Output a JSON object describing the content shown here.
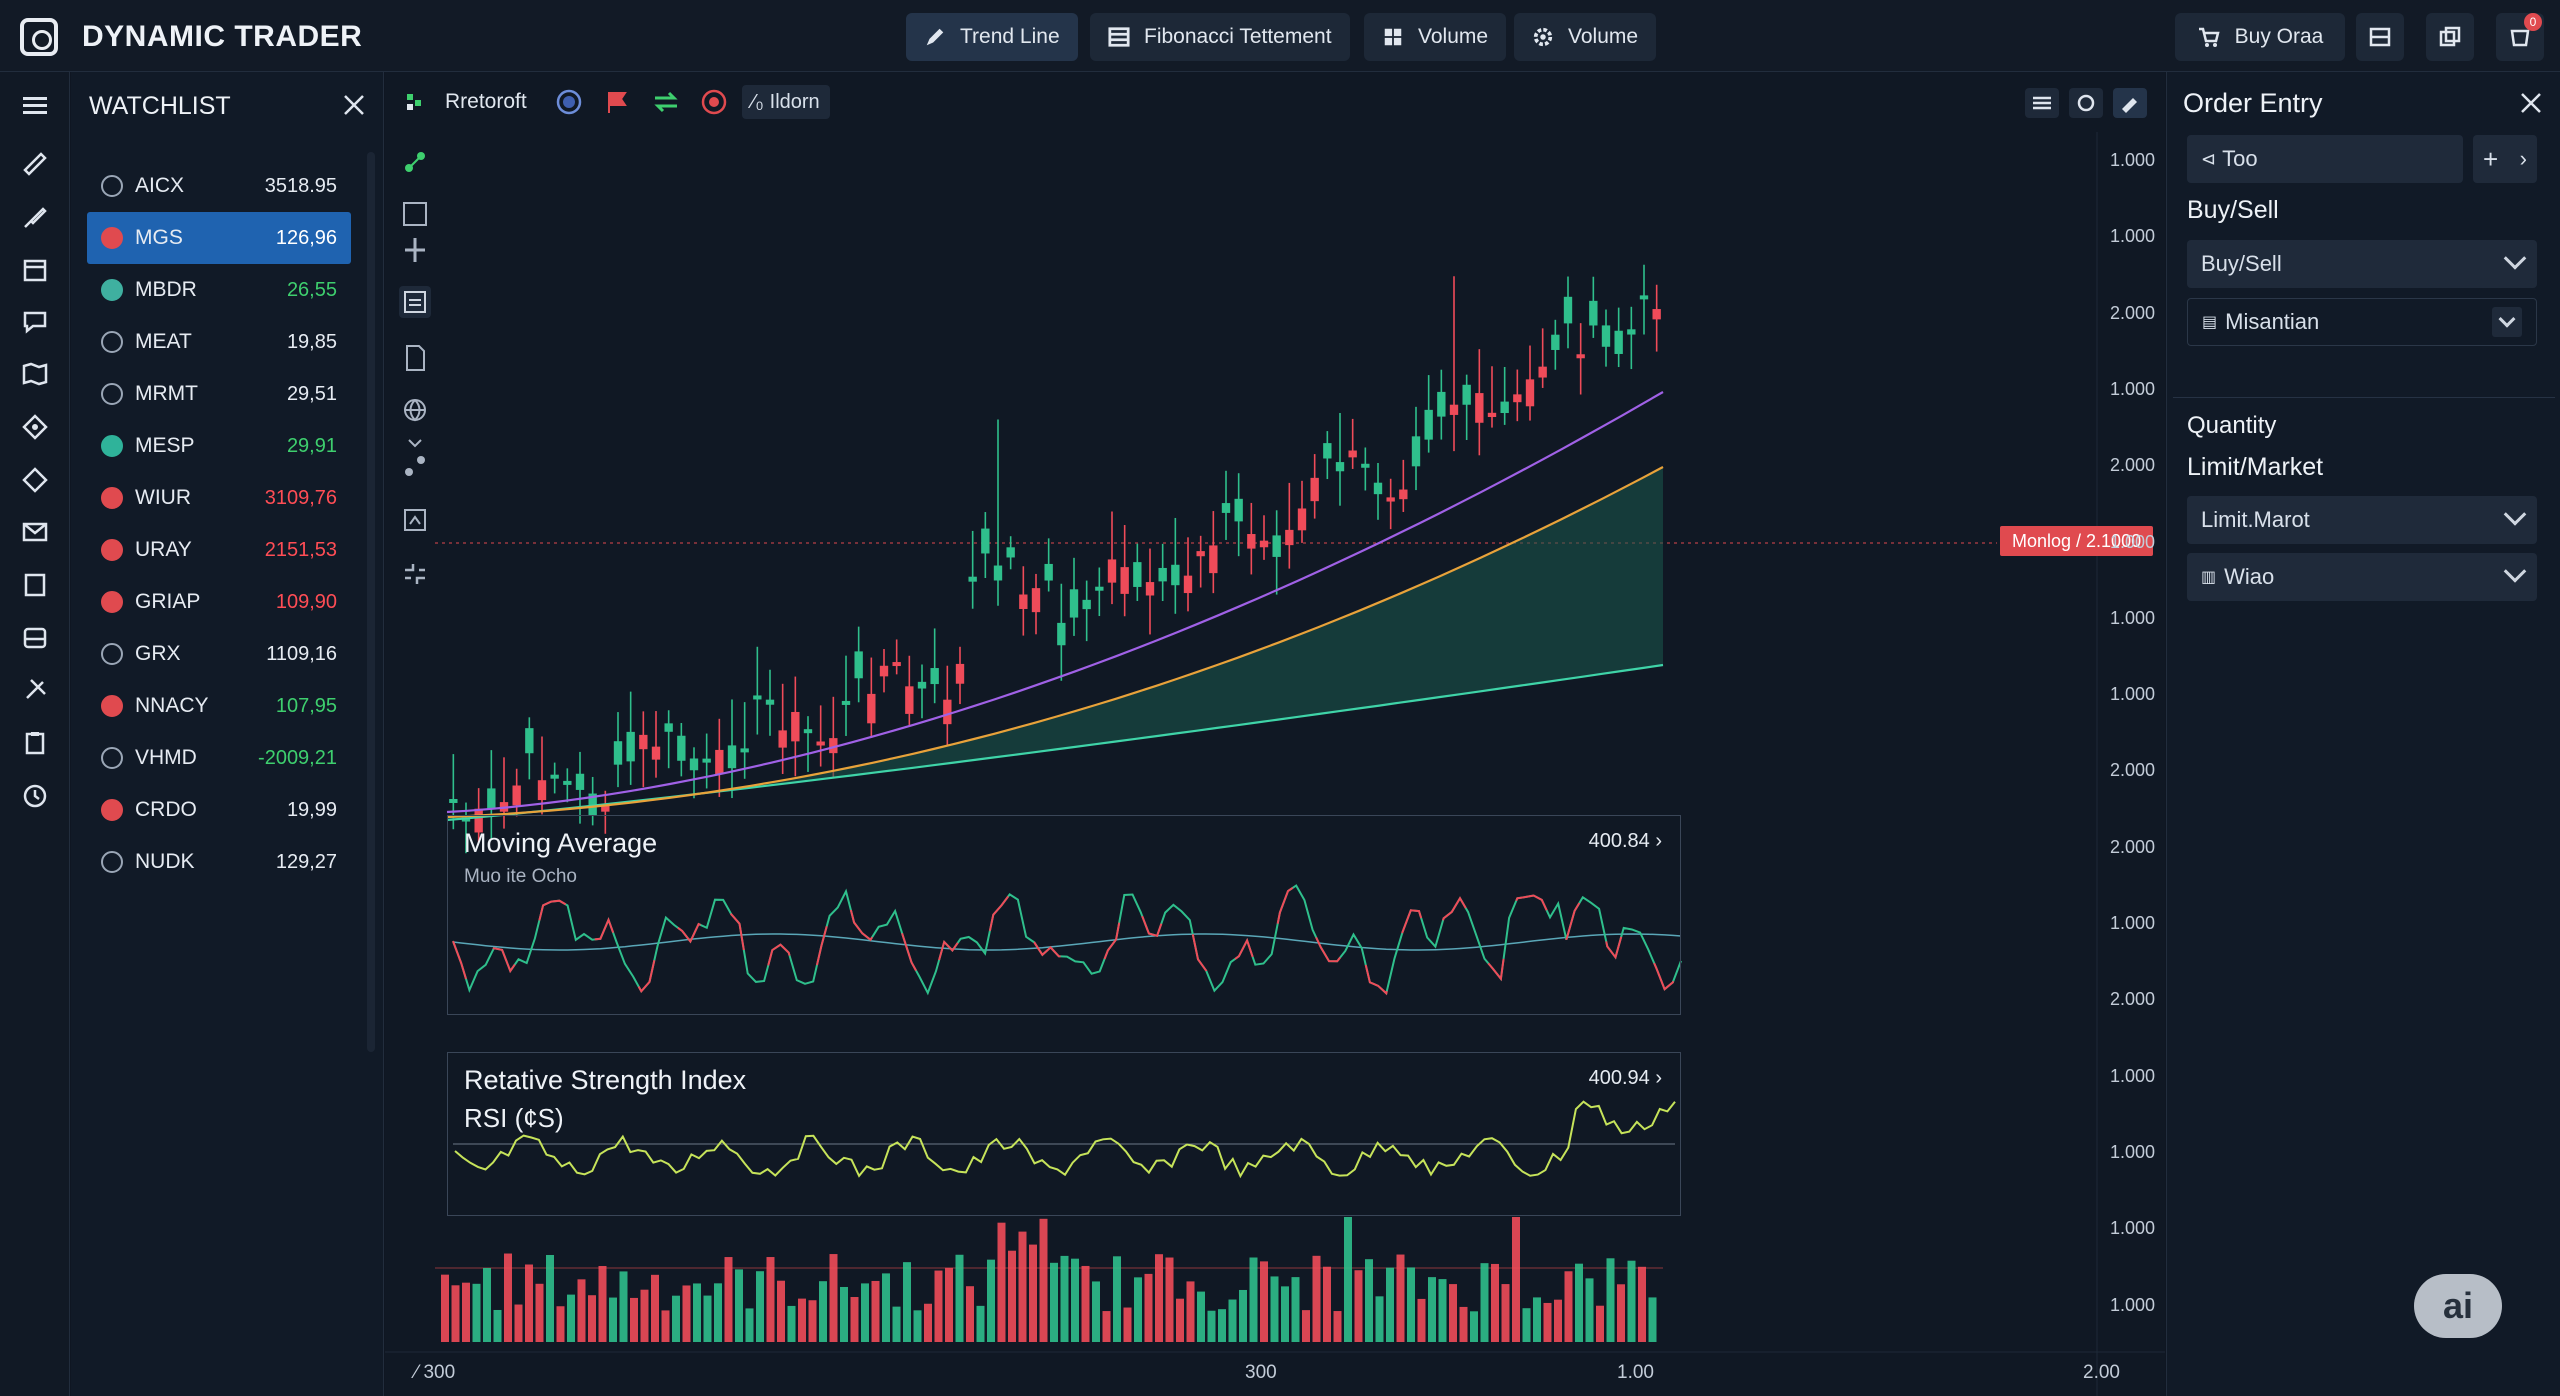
{
  "app": {
    "title": "DYNAMIC TRADER"
  },
  "toolbar": {
    "tools": [
      {
        "label": "Trend Line",
        "icon": "pencil-icon"
      },
      {
        "label": "Fibonacci Tettement",
        "icon": "fibonacci-icon"
      },
      {
        "label": "Volume",
        "icon": "grid-icon"
      },
      {
        "label": "Volume",
        "icon": "gear-icon"
      }
    ],
    "buy_order_label": "Buy Oraa",
    "notification_count": "0"
  },
  "watchlist": {
    "title": "WATCHLIST",
    "items": [
      {
        "symbol": "AICX",
        "value": "3518.95",
        "color": "#e6ebf2",
        "icon_color": "#9aa6b6",
        "selected": false
      },
      {
        "symbol": "MGS",
        "value": "126,96",
        "color": "#e6ebf2",
        "icon_color": "#e04a4f",
        "selected": true
      },
      {
        "symbol": "MBDR",
        "value": "26,55",
        "color": "#3ecf6e",
        "icon_color": "#3fb0a0",
        "selected": false
      },
      {
        "symbol": "MEAT",
        "value": "19,85",
        "color": "#e6ebf2",
        "icon_color": "#9aa6b6",
        "selected": false
      },
      {
        "symbol": "MRMT",
        "value": "29,51",
        "color": "#e6ebf2",
        "icon_color": "#9aa6b6",
        "selected": false
      },
      {
        "symbol": "MESP",
        "value": "29,91",
        "color": "#3ecf6e",
        "icon_color": "#2fb39a",
        "selected": false
      },
      {
        "symbol": "WIUR",
        "value": "3109,76",
        "color": "#ff4d55",
        "icon_color": "#e04a4f",
        "selected": false
      },
      {
        "symbol": "URAY",
        "value": "2151,53",
        "color": "#ff4d55",
        "icon_color": "#e04a4f",
        "selected": false
      },
      {
        "symbol": "GRIAP",
        "value": "109,90",
        "color": "#ff4d55",
        "icon_color": "#e04a4f",
        "selected": false
      },
      {
        "symbol": "GRX",
        "value": "1109,16",
        "color": "#e6ebf2",
        "icon_color": "#9aa6b6",
        "selected": false
      },
      {
        "symbol": "NNACY",
        "value": "107,95",
        "color": "#3ecf6e",
        "icon_color": "#e04a4f",
        "selected": false
      },
      {
        "symbol": "VHMD",
        "value": "-2009,21",
        "color": "#3ecf6e",
        "icon_color": "#9aa6b6",
        "selected": false
      },
      {
        "symbol": "CRDO",
        "value": "19,99",
        "color": "#e6ebf2",
        "icon_color": "#e04a4f",
        "selected": false
      },
      {
        "symbol": "NUDK",
        "value": "129,27",
        "color": "#e6ebf2",
        "icon_color": "#9aa6b6",
        "selected": false
      }
    ]
  },
  "chart": {
    "symbol_label": "Rretoroft",
    "indicator_chip": "Ildorn",
    "price_tag": "Monlog / 2.1000",
    "y_axis_labels": [
      "1.000",
      "1.000",
      "2.000",
      "1.000",
      "2.000",
      "1.000",
      "1.000",
      "1.000",
      "2.000",
      "2.000",
      "1.000",
      "2.000",
      "1.000",
      "1.000",
      "1.000",
      "1.000"
    ],
    "x_axis_labels": [
      "300",
      "300",
      "1.00",
      "2.00"
    ],
    "colors": {
      "up": "#2fbf8c",
      "down": "#ef4b59",
      "ma_purple": "#a061e6",
      "ma_orange": "#e8a23a",
      "ma_teal": "#3fd4a8",
      "area": "#1a5a4c"
    },
    "moving_average_panel": {
      "title": "Moving Average",
      "subtitle": "Muo ite Ocho",
      "value": "400.84"
    },
    "rsi_panel": {
      "title": "Retative Strength Index",
      "subtitle": "RSI (¢S)",
      "value": "400.94"
    }
  },
  "order_entry": {
    "title": "Order Entry",
    "search_value": "Too",
    "buy_sell_label": "Buy/Sell",
    "buy_sell_select": "Buy/Sell",
    "mission_select": "Misantian",
    "quantity_label": "Quantity",
    "limit_market_label": "Limit/Market",
    "limit_select": "Limit.Marot",
    "type_select": "Wiao"
  },
  "ai_badge": "ai"
}
